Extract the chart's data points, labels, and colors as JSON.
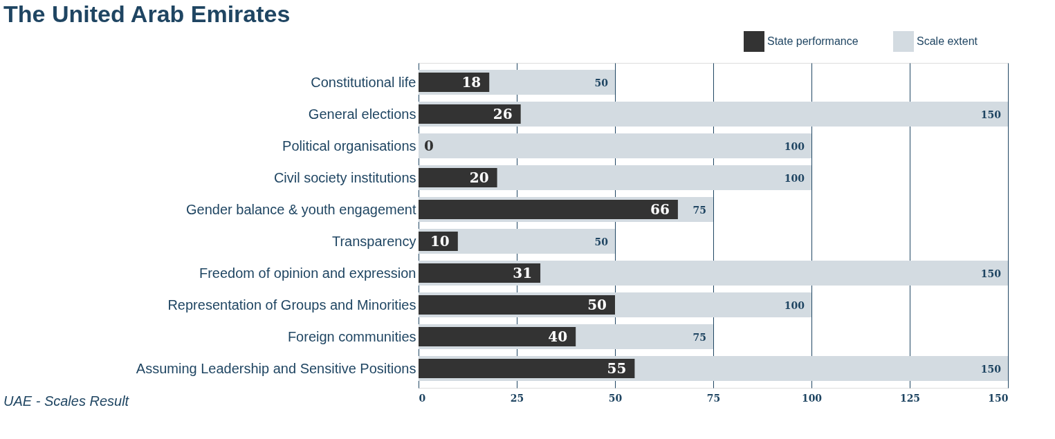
{
  "chart_data": {
    "type": "bar",
    "orientation": "horizontal",
    "title": "The United Arab Emirates",
    "annotations": [
      "UAE - Scales Result"
    ],
    "categories": [
      "Constitutional life",
      "General elections",
      "Political organisations",
      "Civil society institutions",
      "Gender balance & youth engagement",
      "Transparency",
      "Freedom of opinion and expression",
      "Representation of Groups and Minorities",
      "Foreign communities",
      "Assuming Leadership and Sensitive Positions"
    ],
    "series": [
      {
        "name": "State performance",
        "color": "#333333",
        "values": [
          18,
          26,
          0,
          20,
          66,
          10,
          31,
          50,
          40,
          55
        ]
      },
      {
        "name": "Scale extent",
        "color": "#d3dbe1",
        "values": [
          50,
          150,
          100,
          100,
          75,
          50,
          150,
          100,
          75,
          150
        ]
      }
    ],
    "xlim": [
      0,
      150
    ],
    "xticks": [
      0,
      25,
      50,
      75,
      100,
      125,
      150
    ],
    "grid": "x",
    "legend": "top right",
    "data_labels": true
  }
}
